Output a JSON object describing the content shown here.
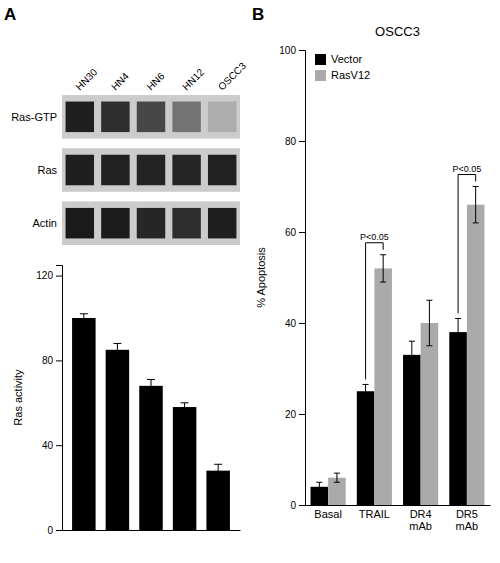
{
  "chart_data": [
    {
      "type": "heatmap",
      "categories": [
        "HN30",
        "HN4",
        "HN6",
        "HN12",
        "OSCC3"
      ],
      "series": [
        {
          "name": "Ras-GTP",
          "values": [
            0.12,
            0.18,
            0.28,
            0.45,
            0.68
          ]
        },
        {
          "name": "Ras",
          "values": [
            0.12,
            0.13,
            0.14,
            0.15,
            0.13
          ]
        },
        {
          "name": "Actin",
          "values": [
            0.1,
            0.11,
            0.15,
            0.18,
            0.12
          ]
        }
      ],
      "annotations": [
        {
          "text": "A"
        }
      ]
    },
    {
      "type": "bar",
      "categories": [
        "HN30",
        "HN4",
        "HN6",
        "HN12",
        "OSCC3"
      ],
      "values": [
        100,
        85,
        68,
        58,
        28
      ],
      "errors": [
        2,
        3,
        3,
        2,
        3
      ],
      "color": "#000000",
      "ylabel": "Ras activity",
      "ylim": [
        0,
        125
      ],
      "yticks": [
        0,
        40,
        80,
        120
      ],
      "tick_labels": "y",
      "grid": false
    },
    {
      "type": "bar",
      "title": "OSCC3",
      "categories": [
        "Basal",
        "TRAIL",
        "DR4\nmAb",
        "DR5\nmAb"
      ],
      "series": [
        {
          "name": "Vector",
          "color": "#000000",
          "values": [
            4,
            25,
            33,
            38
          ],
          "errors": [
            1,
            1.5,
            3,
            3
          ]
        },
        {
          "name": "RasV12",
          "color": "#aaaaaa",
          "values": [
            6,
            52,
            40,
            66
          ],
          "errors": [
            1,
            3,
            5,
            4
          ]
        }
      ],
      "ylabel": "% Apoptosis",
      "ylim": [
        0,
        100
      ],
      "yticks": [
        0,
        20,
        40,
        60,
        80,
        100
      ],
      "legend": "upper left",
      "grid": false,
      "annotations": [
        {
          "text": "B"
        },
        {
          "text": "P<0.05",
          "category": "TRAIL"
        },
        {
          "text": "P<0.05",
          "category": "DR5\nmAb"
        }
      ]
    }
  ]
}
